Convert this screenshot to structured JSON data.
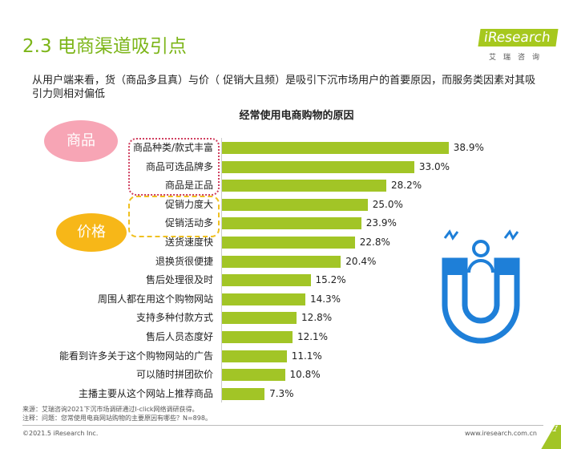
{
  "title": "2.3 电商渠道吸引点",
  "logo": {
    "brand": "iResearch",
    "sub": "艾瑞咨询"
  },
  "lead": "从用户端来看，货（商品多且真）与价（ 促销大且频）是吸引下沉市场用户的首要原因，而服务类因素对其吸引力则相对偏低",
  "bubbles": {
    "goods": "商品",
    "price": "价格"
  },
  "chart_data": {
    "type": "bar",
    "title": "经常使用电商购物的原因",
    "categories": [
      "商品种类/款式丰富",
      "商品可选品牌多",
      "商品是正品",
      "促销力度大",
      "促销活动多",
      "送货速度快",
      "退换货很便捷",
      "售后处理很及时",
      "周围人都在用这个购物网站",
      "支持多种付款方式",
      "售后人员态度好",
      "能看到许多关于这个购物网站的广告",
      "可以随时拼团砍价",
      "主播主要从这个网站上推荐商品"
    ],
    "values": [
      38.9,
      33.0,
      28.2,
      25.0,
      23.9,
      22.8,
      20.4,
      15.2,
      14.3,
      12.8,
      12.1,
      11.1,
      10.8,
      7.3
    ],
    "unit": "%",
    "bar_color": "#a2c526"
  },
  "notes": [
    "来源：艾瑞咨询2021下沉市场调研通过I-click网络调研获得。",
    "注释：问题：您常使用电商网站购物的主要原因有哪些？N=898。"
  ],
  "footer": {
    "copyright": "©2021.5 iResearch Inc.",
    "url": "www.iresearch.com.cn",
    "page": "1"
  }
}
